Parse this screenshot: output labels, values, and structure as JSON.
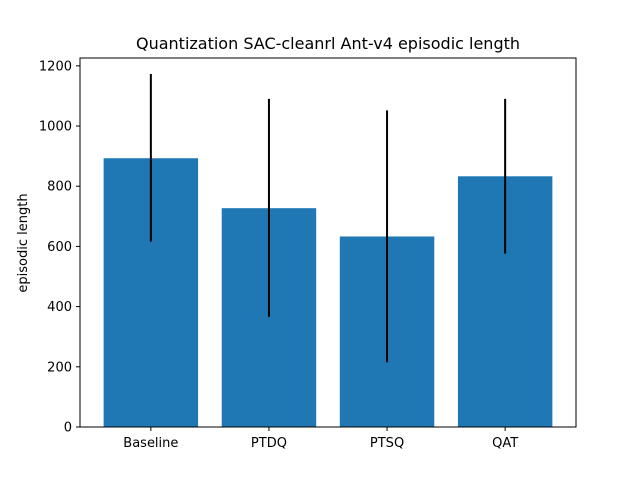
{
  "chart_data": {
    "type": "bar",
    "title": "Quantization SAC-cleanrl Ant-v4 episodic length",
    "xlabel": "",
    "ylabel": "episodic length",
    "categories": [
      "Baseline",
      "PTDQ",
      "PTSQ",
      "QAT"
    ],
    "values": [
      893,
      727,
      633,
      833
    ],
    "error_bars": [
      {
        "low": 616,
        "high": 1173
      },
      {
        "low": 366,
        "high": 1090
      },
      {
        "low": 215,
        "high": 1052
      },
      {
        "low": 576,
        "high": 1090
      }
    ],
    "ylim": [
      0,
      1226
    ],
    "yticks": [
      0,
      200,
      400,
      600,
      800,
      1000,
      1200
    ],
    "grid": false,
    "legend": "none",
    "bar_color": "#1f77b4",
    "error_color": "#000000"
  }
}
